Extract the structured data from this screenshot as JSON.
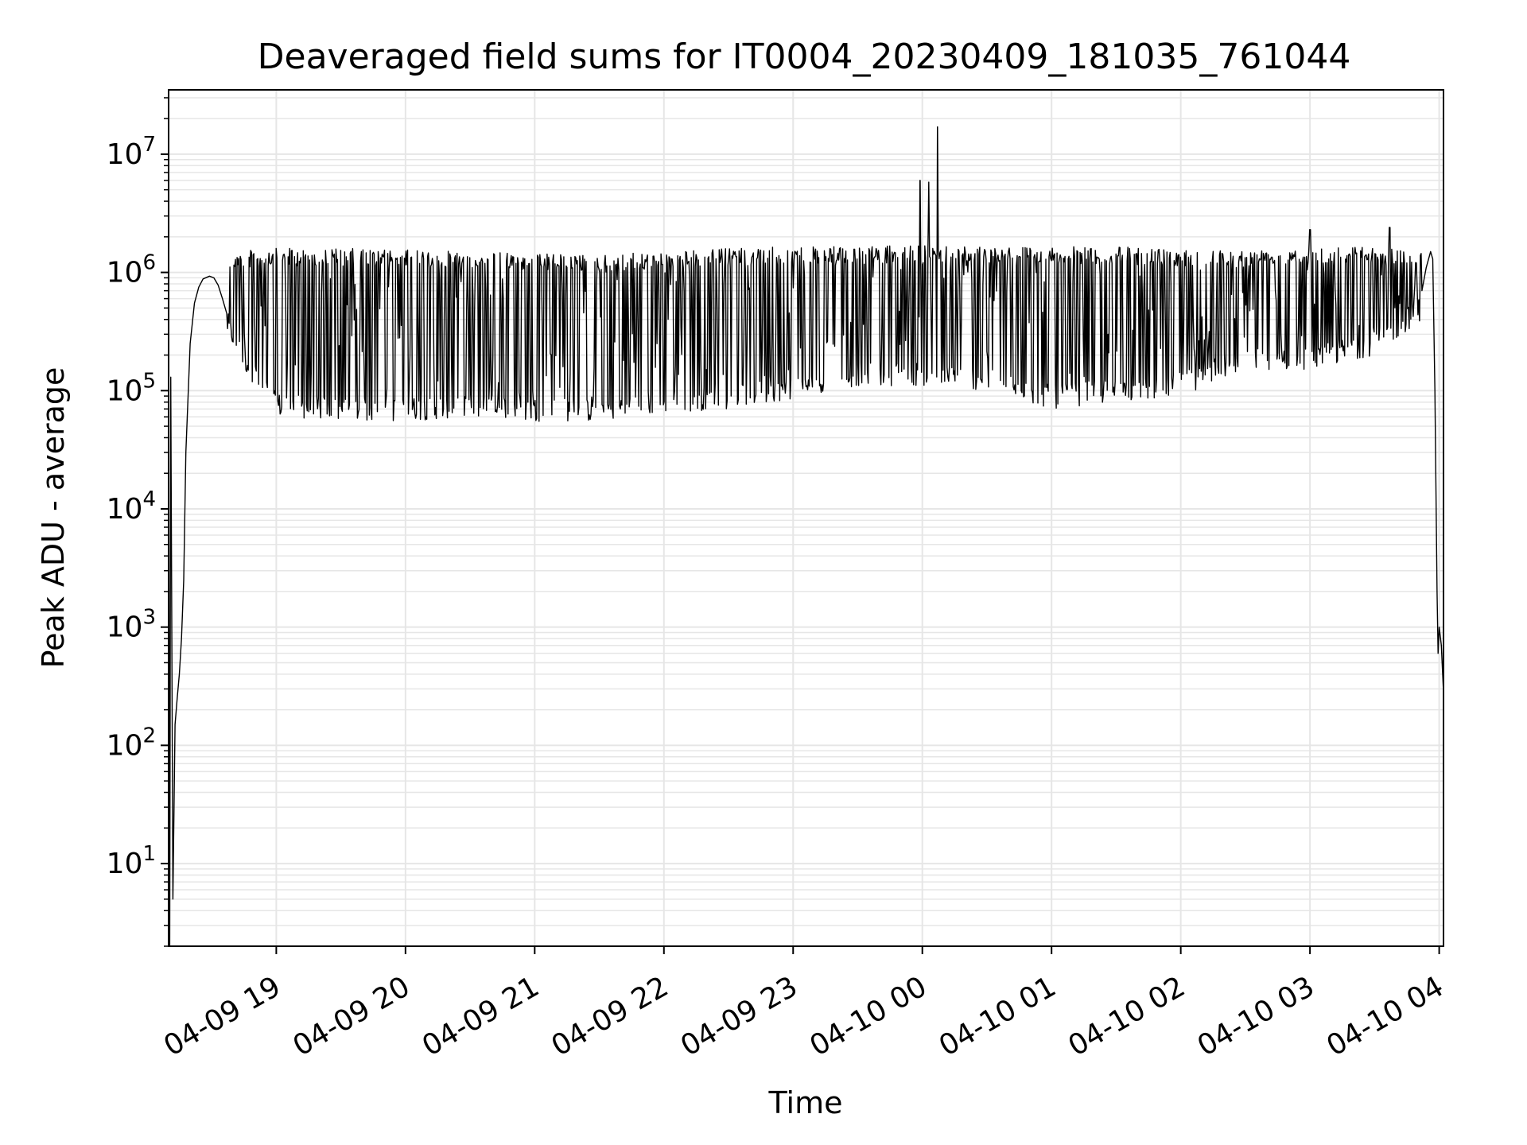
{
  "chart_data": {
    "type": "line",
    "title": "Deaveraged field sums for IT0004_20230409_181035_761044",
    "xlabel": "Time",
    "ylabel": "Peak ADU - average",
    "yscale": "log",
    "ylim": [
      2,
      35000000
    ],
    "xlim": [
      "2023-04-09 18:10",
      "2023-04-10 04:02"
    ],
    "grid": true,
    "x_ticks": [
      "2023-04-09 19:00",
      "2023-04-09 20:00",
      "2023-04-09 21:00",
      "2023-04-09 22:00",
      "2023-04-09 23:00",
      "2023-04-10 00:00",
      "2023-04-10 01:00",
      "2023-04-10 02:00",
      "2023-04-10 03:00",
      "2023-04-10 04:00"
    ],
    "x_tick_labels": [
      "04-09 19",
      "04-09 20",
      "04-09 21",
      "04-09 22",
      "04-09 23",
      "04-10 00",
      "04-10 01",
      "04-10 02",
      "04-10 03",
      "04-10 04"
    ],
    "y_ticks": [
      10,
      100,
      1000,
      10000,
      100000,
      1000000,
      10000000
    ],
    "y_tick_labels": [
      {
        "base": "10",
        "exp": "1"
      },
      {
        "base": "10",
        "exp": "2"
      },
      {
        "base": "10",
        "exp": "3"
      },
      {
        "base": "10",
        "exp": "4"
      },
      {
        "base": "10",
        "exp": "5"
      },
      {
        "base": "10",
        "exp": "6"
      },
      {
        "base": "10",
        "exp": "7"
      }
    ],
    "line_color": "#000000",
    "grid_color": "#e6e6e6",
    "series": [
      {
        "envelope": {
          "upper": [
            [
              "2023-04-09 18:37",
              1500000
            ],
            [
              "2023-04-09 19:00",
              1600000
            ],
            [
              "2023-04-09 19:30",
              1600000
            ],
            [
              "2023-04-09 20:00",
              1550000
            ],
            [
              "2023-04-09 20:30",
              1500000
            ],
            [
              "2023-04-09 21:00",
              1450000
            ],
            [
              "2023-04-09 21:30",
              1400000
            ],
            [
              "2023-04-09 22:00",
              1500000
            ],
            [
              "2023-04-09 22:30",
              1600000
            ],
            [
              "2023-04-09 23:00",
              1650000
            ],
            [
              "2023-04-09 23:30",
              1650000
            ],
            [
              "2023-04-10 00:00",
              1700000
            ],
            [
              "2023-04-10 00:30",
              1700000
            ],
            [
              "2023-04-10 01:00",
              1650000
            ],
            [
              "2023-04-10 01:30",
              1650000
            ],
            [
              "2023-04-10 02:00",
              1600000
            ],
            [
              "2023-04-10 02:30",
              1550000
            ],
            [
              "2023-04-10 03:00",
              1700000
            ],
            [
              "2023-04-10 03:30",
              1650000
            ],
            [
              "2023-04-10 03:52",
              1550000
            ]
          ],
          "lower": [
            [
              "2023-04-09 18:37",
              300000
            ],
            [
              "2023-04-09 18:45",
              150000
            ],
            [
              "2023-04-09 19:00",
              60000
            ],
            [
              "2023-04-09 19:30",
              55000
            ],
            [
              "2023-04-09 20:00",
              55000
            ],
            [
              "2023-04-09 20:30",
              60000
            ],
            [
              "2023-04-09 21:00",
              55000
            ],
            [
              "2023-04-09 21:30",
              55000
            ],
            [
              "2023-04-09 22:00",
              65000
            ],
            [
              "2023-04-09 22:30",
              70000
            ],
            [
              "2023-04-09 23:00",
              85000
            ],
            [
              "2023-04-09 23:30",
              110000
            ],
            [
              "2023-04-10 00:00",
              110000
            ],
            [
              "2023-04-10 00:30",
              100000
            ],
            [
              "2023-04-10 01:00",
              70000
            ],
            [
              "2023-04-10 01:30",
              80000
            ],
            [
              "2023-04-10 02:00",
              90000
            ],
            [
              "2023-04-10 02:30",
              150000
            ],
            [
              "2023-04-10 03:00",
              150000
            ],
            [
              "2023-04-10 03:30",
              200000
            ],
            [
              "2023-04-10 03:52",
              400000
            ]
          ]
        },
        "ramp_up": [
          [
            "2023-04-09 18:10",
            100000
          ],
          [
            "2023-04-09 18:10.5",
            2
          ],
          [
            "2023-04-09 18:11",
            130000
          ],
          [
            "2023-04-09 18:12",
            5
          ],
          [
            "2023-04-09 18:13",
            150
          ],
          [
            "2023-04-09 18:14",
            250
          ],
          [
            "2023-04-09 18:15",
            400
          ],
          [
            "2023-04-09 18:16",
            800
          ],
          [
            "2023-04-09 18:17",
            2500
          ],
          [
            "2023-04-09 18:18",
            30000
          ],
          [
            "2023-04-09 18:20",
            250000
          ],
          [
            "2023-04-09 18:22",
            550000
          ],
          [
            "2023-04-09 18:24",
            750000
          ],
          [
            "2023-04-09 18:26",
            880000
          ],
          [
            "2023-04-09 18:29",
            930000
          ],
          [
            "2023-04-09 18:31",
            900000
          ],
          [
            "2023-04-09 18:33",
            780000
          ],
          [
            "2023-04-09 18:35",
            600000
          ],
          [
            "2023-04-09 18:37",
            450000
          ]
        ],
        "ramp_down": [
          [
            "2023-04-10 03:52",
            700000
          ],
          [
            "2023-04-10 03:54",
            1100000
          ],
          [
            "2023-04-10 03:56",
            1500000
          ],
          [
            "2023-04-10 03:57",
            1300000
          ],
          [
            "2023-04-10 03:58",
            100000
          ],
          [
            "2023-04-10 03:59",
            2000
          ],
          [
            "2023-04-10 03:59.5",
            600
          ],
          [
            "2023-04-10 04:00",
            1000
          ],
          [
            "2023-04-10 04:01",
            700
          ],
          [
            "2023-04-10 04:02",
            280
          ]
        ],
        "spikes": [
          [
            "2023-04-09 23:59",
            6000000
          ],
          [
            "2023-04-10 00:03",
            5800000
          ],
          [
            "2023-04-10 00:07",
            17000000
          ],
          [
            "2023-04-10 03:00",
            2300000
          ],
          [
            "2023-04-10 03:37",
            2400000
          ]
        ]
      }
    ]
  }
}
